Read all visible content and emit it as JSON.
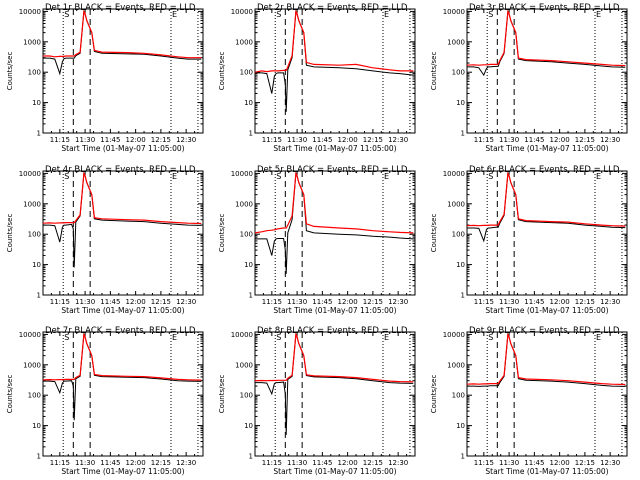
{
  "chart_data": {
    "type": "line",
    "ylabel": "Counts/sec",
    "xlabel": "Start Time (01-May-07 11:05:00)",
    "yscale": "log",
    "ylim": [
      1,
      12000
    ],
    "xlim_minutes_after_start": [
      0,
      95
    ],
    "x_tick_labels": [
      "11:15",
      "11:30",
      "11:45",
      "12:00",
      "12:15",
      "12:30"
    ],
    "y_tick_labels": [
      "1",
      "10",
      "100",
      "1000",
      "10000"
    ],
    "grid": false,
    "colors": {
      "events": "#000000",
      "lld": "#ff0000"
    },
    "marker_lines": {
      "dotted_minutes": [
        12,
        76,
        92
      ],
      "dashed_minutes": [
        18,
        28
      ]
    },
    "panels": [
      {
        "title": "Det 1r BLACK = Events, RED = LLD",
        "marks": [
          "S",
          "E"
        ],
        "x": [
          0,
          4,
          7,
          10,
          11.5,
          12.5,
          13.5,
          17,
          18,
          18.5,
          19.5,
          22,
          24.3,
          24.8,
          26,
          29,
          30.5,
          35,
          50,
          60,
          70,
          80,
          86,
          94
        ],
        "series": [
          {
            "name": "BLACK = Events",
            "values": [
              290,
              290,
              270,
              90,
              220,
              280,
              290,
              290,
              290,
              290,
              350,
              420,
              10000,
              9000,
              5000,
              2000,
              480,
              420,
              400,
              390,
              340,
              290,
              270,
              270
            ]
          },
          {
            "name": "RED = LLD",
            "values": [
              340,
              340,
              320,
              330,
              330,
              330,
              340,
              340,
              340,
              340,
              380,
              450,
              10000,
              9000,
              5000,
              2000,
              520,
              460,
              440,
              420,
              370,
              320,
              300,
              300
            ]
          }
        ]
      },
      {
        "title": "Det 2r BLACK = Events, RED = LLD",
        "marks": [
          "S",
          "E"
        ],
        "x": [
          0,
          4,
          7,
          10,
          11.5,
          12.5,
          13.5,
          17,
          18,
          18.5,
          19.5,
          22,
          24.3,
          24.8,
          26,
          29,
          30.5,
          35,
          50,
          60,
          70,
          80,
          86,
          94
        ],
        "series": [
          {
            "name": "BLACK = Events",
            "values": [
              95,
              95,
              90,
              20,
              75,
              90,
              95,
              95,
              40,
              5,
              120,
              300,
              10000,
              9000,
              5000,
              2000,
              170,
              150,
              140,
              130,
              110,
              95,
              90,
              80
            ]
          },
          {
            "name": "RED = LLD",
            "values": [
              100,
              110,
              105,
              110,
              110,
              110,
              110,
              115,
              115,
              115,
              150,
              350,
              10000,
              9000,
              5000,
              2000,
              210,
              180,
              170,
              180,
              140,
              120,
              110,
              110
            ]
          }
        ]
      },
      {
        "title": "Det 3r BLACK = Events, RED = LLD",
        "marks": [
          "S",
          "E"
        ],
        "x": [
          0,
          4,
          7,
          10,
          11.5,
          12.5,
          13.5,
          17,
          18,
          18.5,
          19.5,
          22,
          24.3,
          24.8,
          26,
          29,
          30.5,
          35,
          50,
          60,
          70,
          80,
          86,
          94
        ],
        "series": [
          {
            "name": "BLACK = Events",
            "values": [
              150,
              150,
              140,
              80,
              130,
              150,
              150,
              155,
              155,
              155,
              220,
              420,
              10000,
              9000,
              5000,
              2000,
              270,
              240,
              220,
              200,
              180,
              160,
              150,
              145
            ]
          },
          {
            "name": "RED = LLD",
            "values": [
              170,
              175,
              170,
              175,
              175,
              175,
              180,
              180,
              180,
              180,
              240,
              450,
              10000,
              9000,
              5000,
              2000,
              290,
              260,
              240,
              220,
              200,
              180,
              170,
              165
            ]
          }
        ]
      },
      {
        "title": "Det 4r BLACK = Events, RED = LLD",
        "marks": [
          "S",
          "E"
        ],
        "x": [
          0,
          4,
          7,
          10,
          11.5,
          12.5,
          13.5,
          17,
          18,
          18.5,
          19.5,
          22,
          24.3,
          24.8,
          26,
          29,
          30.5,
          35,
          50,
          60,
          70,
          80,
          86,
          94
        ],
        "series": [
          {
            "name": "BLACK = Events",
            "values": [
              200,
              200,
              190,
              55,
              170,
              200,
              200,
              210,
              150,
              8,
              250,
              400,
              10000,
              9000,
              5000,
              2000,
              320,
              290,
              270,
              260,
              230,
              210,
              200,
              195
            ]
          },
          {
            "name": "RED = LLD",
            "values": [
              230,
              235,
              230,
              235,
              235,
              235,
              240,
              240,
              240,
              240,
              280,
              430,
              10000,
              9000,
              5000,
              2000,
              350,
              320,
              300,
              290,
              260,
              240,
              230,
              225
            ]
          }
        ]
      },
      {
        "title": "Det 5r BLACK = Events, RED = LLD",
        "marks": [
          "S",
          "E"
        ],
        "x": [
          0,
          4,
          7,
          10,
          11.5,
          12.5,
          13.5,
          17,
          18,
          18.5,
          19.5,
          22,
          24.3,
          24.8,
          26,
          29,
          30.5,
          35,
          50,
          60,
          70,
          80,
          86,
          94
        ],
        "series": [
          {
            "name": "BLACK = Events",
            "values": [
              70,
              70,
              70,
              20,
              60,
              70,
              72,
              72,
              30,
              5,
              110,
              300,
              10000,
              9000,
              5000,
              2000,
              130,
              110,
              100,
              95,
              85,
              80,
              75,
              70
            ]
          },
          {
            "name": "RED = LLD",
            "values": [
              110,
              120,
              130,
              135,
              140,
              145,
              150,
              160,
              160,
              160,
              200,
              400,
              10000,
              9000,
              5000,
              2000,
              220,
              180,
              160,
              150,
              130,
              120,
              115,
              110
            ]
          }
        ]
      },
      {
        "title": "Det 6r BLACK = Events, RED = LLD",
        "marks": [
          "S",
          "E"
        ],
        "x": [
          0,
          4,
          7,
          10,
          11.5,
          12.5,
          13.5,
          17,
          18,
          18.5,
          19.5,
          22,
          24.3,
          24.8,
          26,
          29,
          30.5,
          35,
          50,
          60,
          70,
          80,
          86,
          94
        ],
        "series": [
          {
            "name": "BLACK = Events",
            "values": [
              160,
              160,
              155,
              60,
              140,
              160,
              160,
              170,
              170,
              170,
              230,
              420,
              10000,
              9000,
              5000,
              2000,
              300,
              260,
              240,
              230,
              200,
              180,
              170,
              165
            ]
          },
          {
            "name": "RED = LLD",
            "values": [
              190,
              195,
              190,
              195,
              195,
              195,
              200,
              200,
              200,
              200,
              260,
              450,
              10000,
              9000,
              5000,
              2000,
              320,
              280,
              260,
              250,
              220,
              200,
              190,
              185
            ]
          }
        ]
      },
      {
        "title": "Det 7r BLACK = Events, RED = LLD",
        "marks": [
          "S",
          "E"
        ],
        "x": [
          0,
          4,
          7,
          10,
          11.5,
          12.5,
          13.5,
          17,
          18,
          18.5,
          19.5,
          22,
          24.3,
          24.8,
          26,
          29,
          30.5,
          35,
          50,
          60,
          70,
          80,
          86,
          94
        ],
        "series": [
          {
            "name": "BLACK = Events",
            "values": [
              290,
              290,
              280,
              120,
              250,
              290,
              290,
              300,
              200,
              15,
              350,
              420,
              10000,
              9000,
              5000,
              2000,
              450,
              410,
              390,
              380,
              340,
              300,
              290,
              285
            ]
          },
          {
            "name": "RED = LLD",
            "values": [
              320,
              325,
              320,
              325,
              325,
              325,
              330,
              330,
              330,
              330,
              380,
              450,
              10000,
              9000,
              5000,
              2000,
              480,
              440,
              420,
              410,
              370,
              330,
              320,
              315
            ]
          }
        ]
      },
      {
        "title": "Det 8r BLACK = Events, RED = LLD",
        "marks": [
          "S",
          "E"
        ],
        "x": [
          0,
          4,
          7,
          10,
          11.5,
          12.5,
          13.5,
          17,
          18,
          18.5,
          19.5,
          22,
          24.3,
          24.8,
          26,
          29,
          30.5,
          35,
          50,
          60,
          70,
          80,
          86,
          94
        ],
        "series": [
          {
            "name": "BLACK = Events",
            "values": [
              260,
              260,
              250,
              110,
              240,
              260,
              260,
              270,
              110,
              5,
              330,
              420,
              10000,
              9000,
              5000,
              2000,
              440,
              400,
              380,
              350,
              300,
              260,
              250,
              245
            ]
          },
          {
            "name": "RED = LLD",
            "values": [
              300,
              305,
              300,
              305,
              305,
              305,
              310,
              310,
              310,
              310,
              360,
              450,
              10000,
              9000,
              5000,
              2000,
              470,
              430,
              410,
              380,
              330,
              290,
              280,
              275
            ]
          }
        ]
      },
      {
        "title": "Det 9r BLACK = Events, RED = LLD",
        "marks": [
          "S",
          "E"
        ],
        "x": [
          0,
          4,
          7,
          10,
          11.5,
          12.5,
          13.5,
          17,
          18,
          18.5,
          19.5,
          22,
          24.3,
          24.8,
          26,
          29,
          30.5,
          35,
          50,
          60,
          70,
          80,
          86,
          94
        ],
        "series": [
          {
            "name": "BLACK = Events",
            "values": [
              200,
              200,
              195,
              200,
              200,
              200,
              205,
              205,
              205,
              205,
              260,
              420,
              10000,
              9000,
              5000,
              2000,
              350,
              310,
              290,
              270,
              240,
              210,
              200,
              195
            ]
          },
          {
            "name": "RED = LLD",
            "values": [
              230,
              235,
              230,
              235,
              235,
              235,
              240,
              240,
              240,
              240,
              290,
              450,
              10000,
              9000,
              5000,
              2000,
              380,
              340,
              320,
              300,
              270,
              240,
              230,
              225
            ]
          }
        ]
      }
    ]
  }
}
